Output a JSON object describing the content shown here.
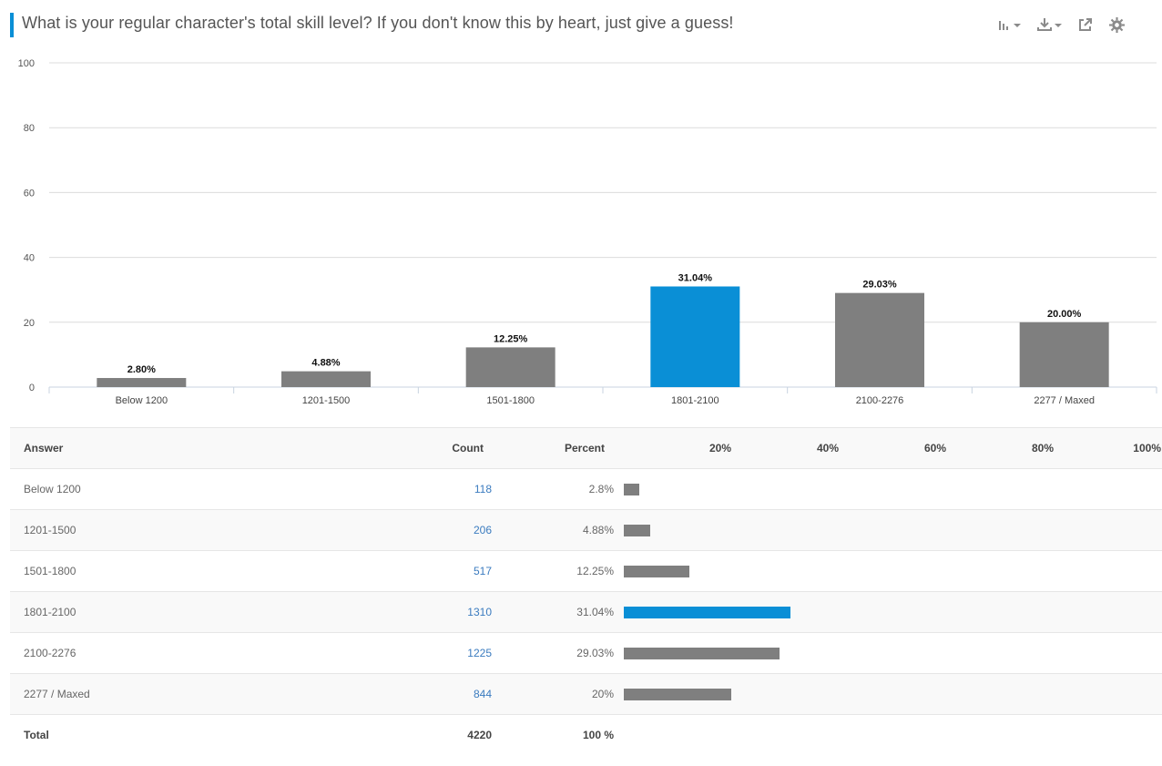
{
  "header": {
    "title": "What is your regular character's total skill level? If you don't know this by heart, just give a guess!"
  },
  "toolbar": {
    "chart_type_icon": "bar-chart-icon",
    "download_icon": "download-icon",
    "share_icon": "share-icon",
    "settings_icon": "gear-icon"
  },
  "colors": {
    "accent": "#0a8fd6",
    "bar": "#7f7f7f",
    "highlight_index": 3
  },
  "chart_data": {
    "type": "bar",
    "categories": [
      "Below 1200",
      "1201-1500",
      "1501-1800",
      "1801-2100",
      "2100-2276",
      "2277 / Maxed"
    ],
    "values": [
      2.8,
      4.88,
      12.25,
      31.04,
      29.03,
      20.0
    ],
    "data_labels": [
      "2.80%",
      "4.88%",
      "12.25%",
      "31.04%",
      "29.03%",
      "20.00%"
    ],
    "yticks": [
      0,
      20,
      40,
      60,
      80,
      100
    ],
    "ylim": [
      0,
      100
    ],
    "title": "",
    "xlabel": "",
    "ylabel": "",
    "grid": true
  },
  "table": {
    "headers": {
      "answer": "Answer",
      "count": "Count",
      "percent": "Percent",
      "scale": [
        "20%",
        "40%",
        "60%",
        "80%",
        "100%"
      ]
    },
    "rows": [
      {
        "answer": "Below 1200",
        "count": "118",
        "percent": "2.8%",
        "value": 2.8
      },
      {
        "answer": "1201-1500",
        "count": "206",
        "percent": "4.88%",
        "value": 4.88
      },
      {
        "answer": "1501-1800",
        "count": "517",
        "percent": "12.25%",
        "value": 12.25
      },
      {
        "answer": "1801-2100",
        "count": "1310",
        "percent": "31.04%",
        "value": 31.04
      },
      {
        "answer": "2100-2276",
        "count": "1225",
        "percent": "29.03%",
        "value": 29.03
      },
      {
        "answer": "2277  /  Maxed",
        "count": "844",
        "percent": "20%",
        "value": 20
      }
    ],
    "total": {
      "label": "Total",
      "count": "4220",
      "percent": "100 %"
    }
  }
}
